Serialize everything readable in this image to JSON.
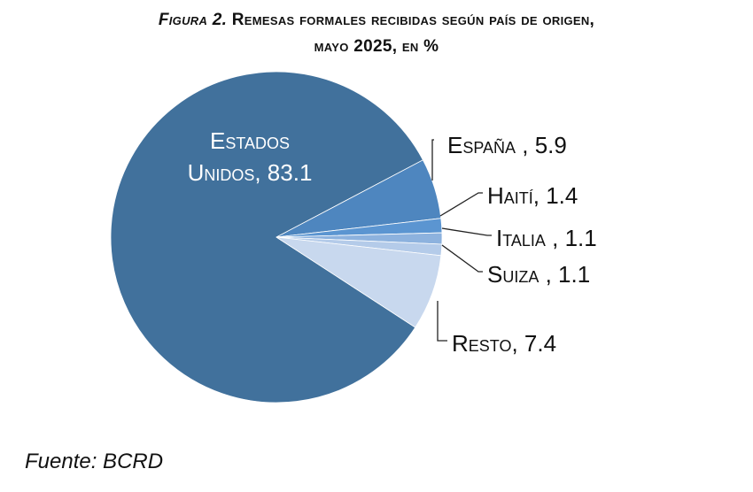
{
  "title": {
    "figure_label": "Figura 2.",
    "line1": "Remesas formales recibidas según país de origen,",
    "line2": "mayo 2025, en %"
  },
  "chart_data": {
    "type": "pie",
    "title": "Figura 2. Remesas formales recibidas según país de origen, mayo 2025, en %",
    "slices": [
      {
        "label": "Estados Unidos",
        "value": 83.1,
        "color": "#41719c"
      },
      {
        "label": "España",
        "value": 5.9,
        "color": "#4e86bf"
      },
      {
        "label": "Haití",
        "value": 1.4,
        "color": "#5b95d1"
      },
      {
        "label": "Italia",
        "value": 1.1,
        "color": "#8db2de"
      },
      {
        "label": "Suiza",
        "value": 1.1,
        "color": "#b4cbe9"
      },
      {
        "label": "Resto",
        "value": 7.4,
        "color": "#c8d8ee"
      }
    ],
    "data_labels": [
      "Estados Unidos, 83.1",
      "España , 5.9",
      "Haití, 1.4",
      "Italia , 1.1",
      "Suiza , 1.1",
      "Resto, 7.4"
    ],
    "legend": "none"
  },
  "source": "Fuente: BCRD"
}
